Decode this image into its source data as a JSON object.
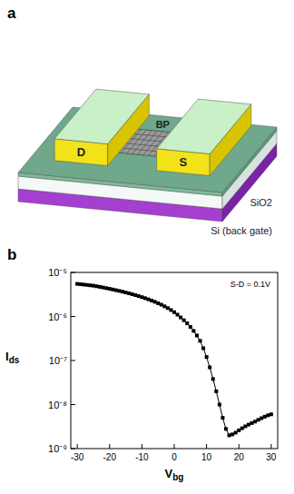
{
  "diagram": {
    "panel_label": "a",
    "labels": [
      "D",
      "BP",
      "S",
      "SiO2",
      "Si (back gate)"
    ]
  },
  "chart_data": {
    "type": "line",
    "panel_label": "b",
    "annotation": "S-D = 0.1V",
    "x_label": "Vbg",
    "y_label": "Ids",
    "log": "y",
    "xlim": [
      -32,
      32
    ],
    "xticks": [
      -30,
      -20,
      -10,
      0,
      10,
      20,
      30
    ],
    "ylim": [
      1e-09,
      1e-05
    ],
    "yticks": [
      {
        "value": 1e-09,
        "label": "10⁻⁹"
      },
      {
        "value": 1e-08,
        "label": "10⁻⁸"
      },
      {
        "value": 1e-07,
        "label": "10⁻⁷"
      },
      {
        "value": 1e-06,
        "label": "10⁻⁶"
      },
      {
        "value": 1e-05,
        "label": "10⁻⁵"
      }
    ],
    "series": [
      {
        "color": "#000000",
        "marker": "square",
        "line_style": "solid",
        "x": [
          -30,
          -29,
          -28,
          -27,
          -26,
          -25,
          -24,
          -23,
          -22,
          -21,
          -20,
          -19,
          -18,
          -17,
          -16,
          -15,
          -14,
          -13,
          -12,
          -11,
          -10,
          -9,
          -8,
          -7,
          -6,
          -5,
          -4,
          -3,
          -2,
          -1,
          0,
          1,
          2,
          3,
          4,
          5,
          6,
          7,
          8,
          9,
          10,
          11,
          12,
          13,
          14,
          15,
          16,
          17,
          18,
          19,
          20,
          21,
          22,
          23,
          24,
          25,
          26,
          27,
          28,
          29,
          30
        ],
        "values": [
          5.5e-06,
          5.4e-06,
          5.3e-06,
          5.2e-06,
          5.1e-06,
          5e-06,
          4.85e-06,
          4.7e-06,
          4.55e-06,
          4.4e-06,
          4.25e-06,
          4.1e-06,
          3.95e-06,
          3.8e-06,
          3.65e-06,
          3.5e-06,
          3.35e-06,
          3.2e-06,
          3.05e-06,
          2.9e-06,
          2.75e-06,
          2.6e-06,
          2.45e-06,
          2.3e-06,
          2.15e-06,
          2e-06,
          1.85e-06,
          1.7e-06,
          1.55e-06,
          1.4e-06,
          1.25e-06,
          1.1e-06,
          9.5e-07,
          8.2e-07,
          7e-07,
          5.8e-07,
          4.7e-07,
          3.7e-07,
          2.8e-07,
          1.9e-07,
          1.2e-07,
          7e-08,
          3.8e-08,
          2e-08,
          1e-08,
          5e-09,
          2.8e-09,
          2e-09,
          2.1e-09,
          2.3e-09,
          2.6e-09,
          2.9e-09,
          3.2e-09,
          3.5e-09,
          3.8e-09,
          4.1e-09,
          4.5e-09,
          4.9e-09,
          5.3e-09,
          5.7e-09,
          6e-09
        ]
      }
    ]
  }
}
